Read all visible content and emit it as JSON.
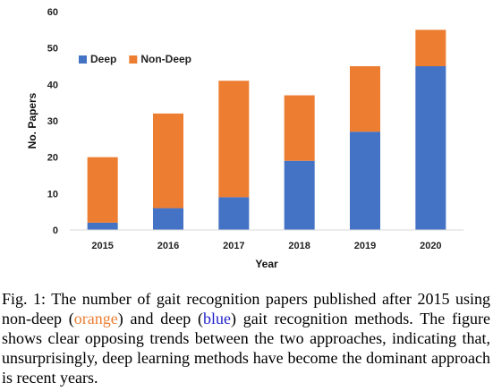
{
  "chart_data": {
    "type": "bar",
    "stacked": true,
    "categories": [
      "2015",
      "2016",
      "2017",
      "2018",
      "2019",
      "2020"
    ],
    "series": [
      {
        "name": "Deep",
        "values": [
          2,
          6,
          9,
          19,
          27,
          45
        ],
        "color": "#4472C4"
      },
      {
        "name": "Non-Deep",
        "values": [
          18,
          26,
          32,
          18,
          18,
          10
        ],
        "color": "#ED7D31"
      }
    ],
    "xlabel": "Year",
    "ylabel": "No. Papers",
    "ylim": [
      0,
      60
    ],
    "yticks": [
      0,
      10,
      20,
      30,
      40,
      50,
      60
    ],
    "grid": false,
    "legend_position": "top-left"
  },
  "caption": {
    "label": "Fig. 1:",
    "part1": "The number of gait recognition papers published after 2015 using non-deep (",
    "orange_word": "orange",
    "part2": ") and deep (",
    "blue_word": "blue",
    "part3": ") gait recognition methods. The figure shows clear opposing trends between the two approaches, indicating that, unsurprisingly, deep learning methods have become the dominant approach is recent years."
  }
}
